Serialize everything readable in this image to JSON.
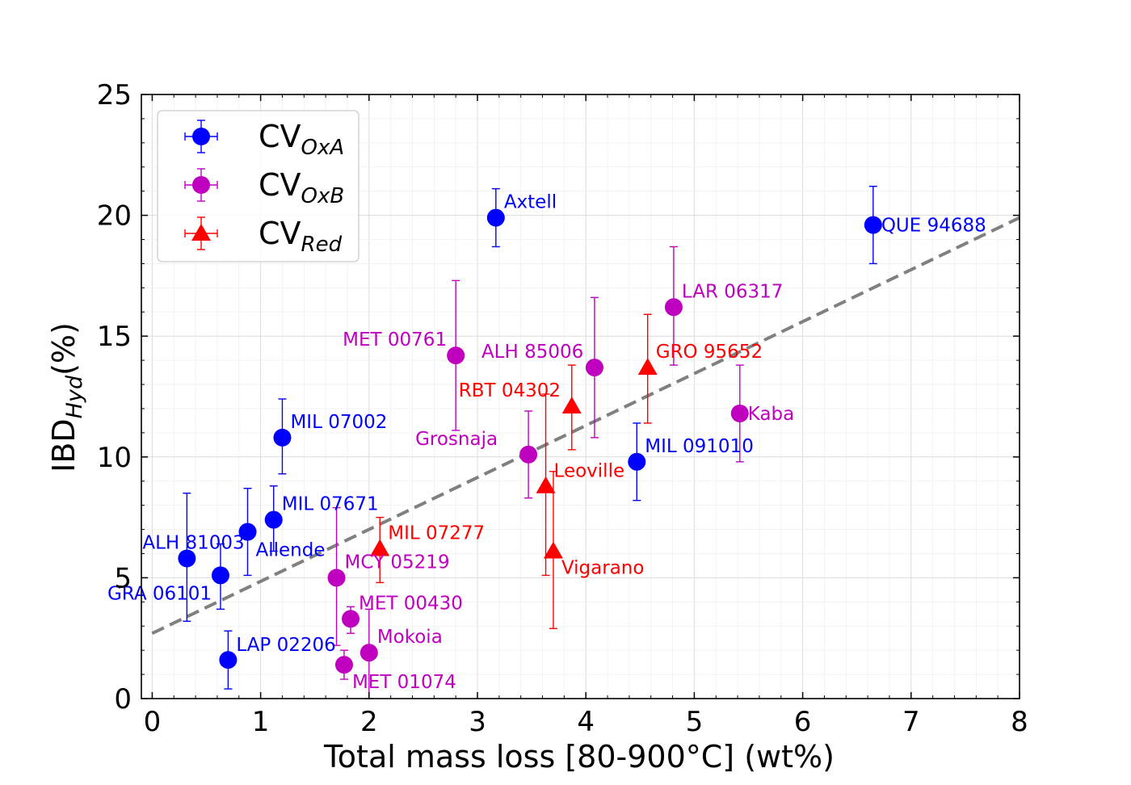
{
  "chart_data": {
    "type": "scatter",
    "xlabel": "Total mass loss [80-900°C] (wt%)",
    "ylabel_main": "IBD",
    "ylabel_sub": "Hyd",
    "ylabel_unit": "(%)",
    "xlim": [
      -0.1,
      8.0
    ],
    "ylim": [
      0,
      25
    ],
    "xticks": [
      0,
      1,
      2,
      3,
      4,
      5,
      6,
      7,
      8
    ],
    "yticks": [
      0,
      5,
      10,
      15,
      20,
      25
    ],
    "grid": true,
    "fit_line": {
      "x": [
        0,
        8
      ],
      "y": [
        2.7,
        19.9
      ],
      "style": "dashed",
      "color": "#808080"
    },
    "series": [
      {
        "name": "CV_OxA",
        "legend_main": "CV",
        "legend_sub": "OxA",
        "color": "#0000ff",
        "marker": "circle",
        "points": [
          {
            "label": "Axtell",
            "x": 3.17,
            "y": 19.9,
            "yerr_low": 18.7,
            "yerr_high": 21.1
          },
          {
            "label": "QUE 94688",
            "x": 6.65,
            "y": 19.6,
            "yerr_low": 18.0,
            "yerr_high": 21.2
          },
          {
            "label": "MIL 07002",
            "x": 1.2,
            "y": 10.8,
            "yerr_low": 9.3,
            "yerr_high": 12.4
          },
          {
            "label": "MIL 091010",
            "x": 4.47,
            "y": 9.8,
            "yerr_low": 8.2,
            "yerr_high": 11.4
          },
          {
            "label": "MIL 07671",
            "x": 1.12,
            "y": 7.4,
            "yerr_low": 6.1,
            "yerr_high": 8.8
          },
          {
            "label": "Allende",
            "x": 0.88,
            "y": 6.9,
            "yerr_low": 5.1,
            "yerr_high": 8.7
          },
          {
            "label": "ALH 81003",
            "x": 0.32,
            "y": 5.8,
            "yerr_low": 3.2,
            "yerr_high": 8.5
          },
          {
            "label": "GRA 06101",
            "x": 0.63,
            "y": 5.1,
            "yerr_low": 3.7,
            "yerr_high": 6.4
          },
          {
            "label": "LAP 02206",
            "x": 0.7,
            "y": 1.6,
            "yerr_low": 0.4,
            "yerr_high": 2.8
          }
        ]
      },
      {
        "name": "CV_OxB",
        "legend_main": "CV",
        "legend_sub": "OxB",
        "color": "#bf00bf",
        "marker": "circle",
        "points": [
          {
            "label": "LAR 06317",
            "x": 4.81,
            "y": 16.2,
            "yerr_low": 13.8,
            "yerr_high": 18.7
          },
          {
            "label": "MET 00761",
            "x": 2.8,
            "y": 14.2,
            "yerr_low": 11.1,
            "yerr_high": 17.3
          },
          {
            "label": "ALH 85006",
            "x": 4.08,
            "y": 13.7,
            "yerr_low": 10.8,
            "yerr_high": 16.6
          },
          {
            "label": "Kaba",
            "x": 5.42,
            "y": 11.8,
            "yerr_low": 9.8,
            "yerr_high": 13.8
          },
          {
            "label": "Grosnaja",
            "x": 3.47,
            "y": 10.1,
            "yerr_low": 8.3,
            "yerr_high": 11.9
          },
          {
            "label": "MCY 05219",
            "x": 1.7,
            "y": 5.0,
            "yerr_low": 2.2,
            "yerr_high": 7.9
          },
          {
            "label": "MET 00430",
            "x": 1.83,
            "y": 3.3,
            "yerr_low": 2.7,
            "yerr_high": 3.8
          },
          {
            "label": "Mokoia",
            "x": 2.0,
            "y": 1.9,
            "yerr_low": 0.0,
            "yerr_high": 3.7
          },
          {
            "label": "MET 01074",
            "x": 1.77,
            "y": 1.4,
            "yerr_low": 0.8,
            "yerr_high": 2.0
          }
        ]
      },
      {
        "name": "CV_Red",
        "legend_main": "CV",
        "legend_sub": "Red",
        "color": "#ff0000",
        "marker": "triangle",
        "points": [
          {
            "label": "GRO 95652",
            "x": 4.57,
            "y": 13.7,
            "yerr_low": 11.4,
            "yerr_high": 15.9
          },
          {
            "label": "RBT 04302",
            "x": 3.87,
            "y": 12.1,
            "yerr_low": 10.3,
            "yerr_high": 13.8
          },
          {
            "label": "Leoville",
            "x": 3.63,
            "y": 8.8,
            "yerr_low": 5.1,
            "yerr_high": 12.6
          },
          {
            "label": "MIL 07277",
            "x": 2.1,
            "y": 6.2,
            "yerr_low": 4.8,
            "yerr_high": 7.5
          },
          {
            "label": "Vigarano",
            "x": 3.7,
            "y": 6.1,
            "yerr_low": 2.9,
            "yerr_high": 9.4
          }
        ]
      }
    ]
  }
}
